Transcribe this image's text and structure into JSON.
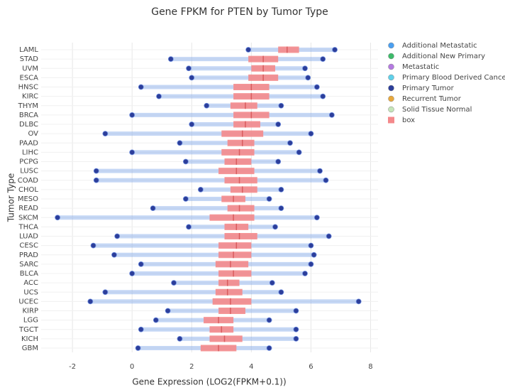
{
  "chart_data": {
    "type": "box",
    "title": "Gene FPKM for PTEN by Tumor Type",
    "xlabel": "Gene Expression (LOG2(FPKM+0.1))",
    "ylabel": "Tumor Type",
    "categories": [
      "LAML",
      "STAD",
      "UVM",
      "ESCA",
      "HNSC",
      "KIRC",
      "THYM",
      "BRCA",
      "DLBC",
      "OV",
      "PAAD",
      "LIHC",
      "PCPG",
      "LUSC",
      "COAD",
      "CHOL",
      "MESO",
      "READ",
      "SKCM",
      "THCA",
      "LUAD",
      "CESC",
      "PRAD",
      "SARC",
      "BLCA",
      "ACC",
      "UCS",
      "UCEC",
      "KIRP",
      "LGG",
      "TGCT",
      "KICH",
      "GBM"
    ],
    "min": [
      3.9,
      1.3,
      1.9,
      2.0,
      0.3,
      0.9,
      2.5,
      0.0,
      2.0,
      -0.9,
      1.6,
      0.0,
      1.8,
      -1.2,
      -1.2,
      2.3,
      1.8,
      0.7,
      -2.5,
      1.9,
      -0.5,
      -1.3,
      -0.6,
      0.3,
      0.0,
      1.4,
      -0.9,
      -1.4,
      1.2,
      0.8,
      0.3,
      1.6,
      0.2
    ],
    "q1": [
      4.9,
      3.9,
      4.0,
      3.9,
      3.4,
      3.4,
      3.3,
      3.4,
      3.4,
      3.0,
      3.2,
      3.0,
      3.1,
      2.9,
      3.1,
      3.3,
      3.0,
      3.2,
      2.6,
      3.1,
      3.1,
      2.9,
      2.9,
      2.8,
      2.9,
      2.9,
      2.8,
      2.7,
      2.9,
      2.4,
      2.6,
      2.6,
      2.3
    ],
    "median": [
      5.2,
      4.4,
      4.4,
      4.4,
      4.0,
      4.0,
      3.8,
      4.0,
      3.8,
      3.7,
      3.7,
      3.6,
      3.5,
      3.5,
      3.6,
      3.7,
      3.4,
      3.6,
      3.4,
      3.5,
      3.6,
      3.5,
      3.4,
      3.3,
      3.4,
      3.2,
      3.2,
      3.3,
      3.3,
      2.9,
      3.0,
      3.1,
      2.9
    ],
    "q3": [
      5.6,
      4.9,
      4.8,
      4.9,
      4.6,
      4.6,
      4.2,
      4.6,
      4.3,
      4.4,
      4.1,
      4.1,
      4.0,
      4.1,
      4.2,
      4.2,
      3.8,
      4.1,
      4.1,
      3.9,
      4.2,
      4.0,
      4.0,
      3.9,
      4.0,
      3.6,
      3.7,
      4.0,
      3.8,
      3.4,
      3.4,
      3.7,
      3.5
    ],
    "max": [
      6.8,
      6.4,
      5.8,
      5.9,
      6.2,
      6.4,
      5.0,
      6.7,
      4.9,
      6.0,
      5.3,
      5.6,
      4.9,
      6.3,
      6.5,
      5.0,
      4.6,
      5.0,
      6.2,
      4.8,
      6.6,
      6.0,
      6.1,
      6.0,
      5.8,
      4.7,
      5.0,
      7.6,
      5.5,
      4.6,
      5.5,
      5.5,
      4.6
    ],
    "point_color": "#2c3e9a",
    "box_color": "#f4898b",
    "legend": [
      {
        "name": "Additional Metastatic",
        "color": "#4a9ff0"
      },
      {
        "name": "Additional New Primary",
        "color": "#3dbb6a"
      },
      {
        "name": "Metastatic",
        "color": "#b47ae0"
      },
      {
        "name": "Primary Blood Derived Cance...",
        "color": "#5fd0ea"
      },
      {
        "name": "Primary Tumor",
        "color": "#2c3e9a"
      },
      {
        "name": "Recurrent Tumor",
        "color": "#e8a83c"
      },
      {
        "name": "Solid Tissue Normal",
        "color": "#c5e5b8"
      },
      {
        "name": "box",
        "color": "#f4898b",
        "symbol": "square"
      }
    ],
    "xlim": [
      -3.05,
      8.25
    ],
    "xticks": [
      -2,
      0,
      2,
      4,
      6,
      8
    ],
    "grid": true
  }
}
